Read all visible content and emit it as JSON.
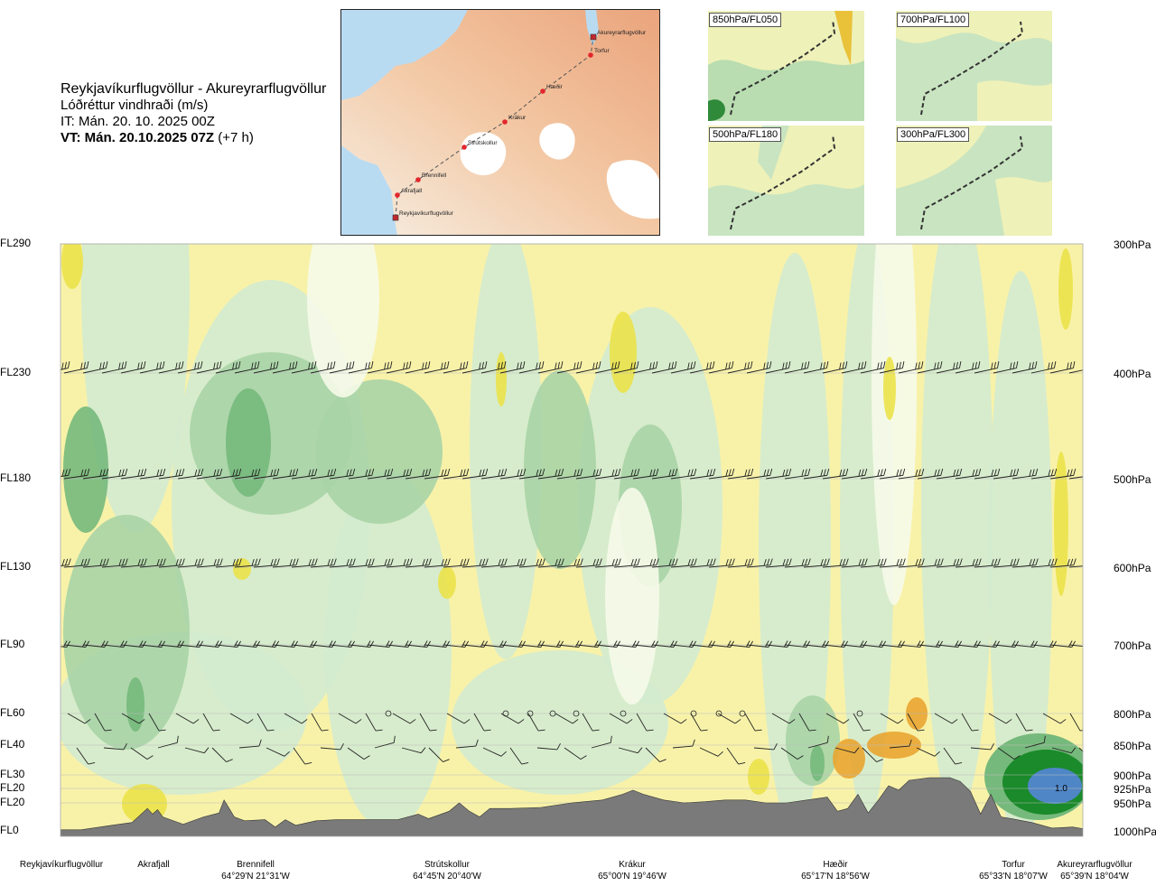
{
  "header": {
    "route_title": "Reykjavíkurflugvöllur - Akureyrarflugvöllur",
    "parameter": "Lóðréttur vindhraði (m/s)",
    "issue_time": "IT: Mán. 20. 10. 2025 00Z",
    "valid_label": "VT: Mán. 20.10.2025 07Z",
    "valid_offset": "(+7 h)"
  },
  "map": {
    "waypoints": [
      {
        "name": "Akureyrarflugvöllur",
        "type": "airport"
      },
      {
        "name": "Torfur",
        "type": "point"
      },
      {
        "name": "Hæðir",
        "type": "point"
      },
      {
        "name": "Krákur",
        "type": "point"
      },
      {
        "name": "Strútskollur",
        "type": "point"
      },
      {
        "name": "Brennifell",
        "type": "point"
      },
      {
        "name": "Akrafjall",
        "type": "point"
      },
      {
        "name": "Reykjavíkurflugvöllur",
        "type": "airport"
      }
    ]
  },
  "thumbnails": [
    {
      "label": "850hPa/FL050"
    },
    {
      "label": "700hPa/FL100"
    },
    {
      "label": "500hPa/FL180"
    },
    {
      "label": "300hPa/FL300"
    }
  ],
  "colors": {
    "strong_green": "#1a8a2a",
    "mid_green": "#76b97c",
    "light_green": "#a9d4a6",
    "pale_green": "#d3ebcf",
    "near_zero": "#f6fbe9",
    "pale_yellow": "#f8f2a9",
    "yellow": "#ebe24a",
    "orange": "#e9a531",
    "blue": "#4f86c6",
    "terrain": "#7a7a7a"
  },
  "chart_data": {
    "type": "heatmap",
    "title": "Reykjavíkurflugvöllur - Akureyrarflugvöllur",
    "variable": "Lóðréttur vindhraði (m/s)",
    "left_axis_labels": [
      "FL290",
      "FL230",
      "FL180",
      "FL130",
      "FL90",
      "FL60",
      "FL40",
      "FL30",
      "FL20",
      "FL20",
      "FL0"
    ],
    "right_axis_labels": [
      "300hPa",
      "400hPa",
      "500hPa",
      "600hPa",
      "700hPa",
      "800hPa",
      "850hPa",
      "900hPa",
      "925hPa",
      "950hPa",
      "1000hPa"
    ],
    "pressure_levels_hPa": [
      300,
      400,
      500,
      600,
      700,
      800,
      850,
      900,
      925,
      950,
      1000
    ],
    "contour_annotation": "1.0",
    "bottom_labels": [
      {
        "name": "Reykjavíkurflugvöllur",
        "coord": ""
      },
      {
        "name": "Akrafjall",
        "coord": ""
      },
      {
        "name": "Brennifell",
        "coord": "64°29'N 21°31'W"
      },
      {
        "name": "Strútskollur",
        "coord": "64°45'N 20°40'W"
      },
      {
        "name": "Krákur",
        "coord": "65°00'N 19°46'W"
      },
      {
        "name": "Hæðir",
        "coord": "65°17'N 18°56'W"
      },
      {
        "name": "Torfur",
        "coord": "65°33'N 18°07'W"
      },
      {
        "name": "Akureyrarflugvöllur",
        "coord": "65°39'N 18°04'W"
      }
    ],
    "terrain_profile_hPa": [
      [
        0.0,
        998
      ],
      [
        0.02,
        998
      ],
      [
        0.05,
        990
      ],
      [
        0.07,
        985
      ],
      [
        0.085,
        960
      ],
      [
        0.09,
        970
      ],
      [
        0.095,
        962
      ],
      [
        0.1,
        975
      ],
      [
        0.12,
        988
      ],
      [
        0.14,
        975
      ],
      [
        0.155,
        968
      ],
      [
        0.16,
        945
      ],
      [
        0.165,
        960
      ],
      [
        0.17,
        975
      ],
      [
        0.18,
        982
      ],
      [
        0.2,
        980
      ],
      [
        0.21,
        993
      ],
      [
        0.22,
        980
      ],
      [
        0.23,
        990
      ],
      [
        0.25,
        982
      ],
      [
        0.27,
        980
      ],
      [
        0.3,
        980
      ],
      [
        0.33,
        980
      ],
      [
        0.35,
        970
      ],
      [
        0.36,
        978
      ],
      [
        0.38,
        965
      ],
      [
        0.39,
        950
      ],
      [
        0.4,
        965
      ],
      [
        0.41,
        975
      ],
      [
        0.42,
        960
      ],
      [
        0.44,
        960
      ],
      [
        0.47,
        958
      ],
      [
        0.5,
        950
      ],
      [
        0.53,
        945
      ],
      [
        0.55,
        935
      ],
      [
        0.56,
        928
      ],
      [
        0.57,
        935
      ],
      [
        0.59,
        945
      ],
      [
        0.61,
        950
      ],
      [
        0.63,
        948
      ],
      [
        0.65,
        945
      ],
      [
        0.67,
        945
      ],
      [
        0.69,
        950
      ],
      [
        0.71,
        950
      ],
      [
        0.73,
        945
      ],
      [
        0.75,
        940
      ],
      [
        0.76,
        965
      ],
      [
        0.77,
        960
      ],
      [
        0.78,
        935
      ],
      [
        0.79,
        968
      ],
      [
        0.8,
        945
      ],
      [
        0.81,
        920
      ],
      [
        0.82,
        928
      ],
      [
        0.83,
        910
      ],
      [
        0.85,
        905
      ],
      [
        0.87,
        905
      ],
      [
        0.88,
        912
      ],
      [
        0.89,
        930
      ],
      [
        0.9,
        970
      ],
      [
        0.91,
        935
      ],
      [
        0.92,
        975
      ],
      [
        0.93,
        978
      ],
      [
        0.95,
        985
      ],
      [
        0.97,
        995
      ],
      [
        0.99,
        993
      ],
      [
        1.0,
        996
      ]
    ]
  }
}
